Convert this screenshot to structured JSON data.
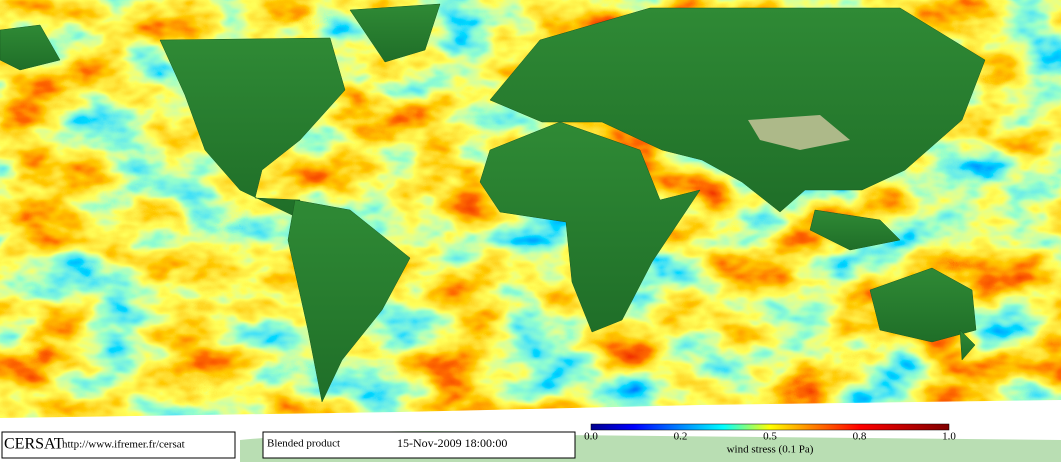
{
  "footer": {
    "logo": "CERSAT",
    "url": "http://www.ifremer.fr/cersat",
    "product": "Blended product",
    "datetime": "15-Nov-2009 18:00:00"
  },
  "legend": {
    "tick_labels": [
      "0.0",
      "0.2",
      "0.5",
      "0.8",
      "1.0"
    ],
    "title": "wind stress (0.1 Pa)"
  }
}
